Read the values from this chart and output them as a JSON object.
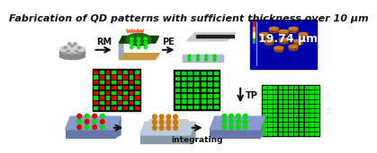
{
  "title": "Fabrication of QD patterns with sufficient thickness over 10 μm",
  "thickness_label": "19.74 μm",
  "integrating_label": "integrating",
  "rm_label": "RM",
  "pe_label": "PE",
  "tp_label": "TP",
  "bg_color": "#ffffff",
  "arrow_color": "#111111",
  "green_sq": "#00dd00",
  "red_sq": "#dd0000",
  "black_bg": "#000000",
  "blue_sub": "#7b9fd4",
  "blue_sub_dark": "#5b7fb4",
  "afm_blue": "#0000aa",
  "brown_bump": "#8B4513",
  "tan_bump": "#cc7722",
  "wafer_top": "#d0d0d0",
  "wafer_side": "#888888",
  "amber_dot": "#cc7700",
  "white": "#ffffff",
  "orange_ray": "#ff6633",
  "green_film": "#115511",
  "green_dots_film": "#00ee00",
  "tan_sub": "#cc9944",
  "gray_stamp": "#cccccc",
  "stamp_black": "#222222"
}
